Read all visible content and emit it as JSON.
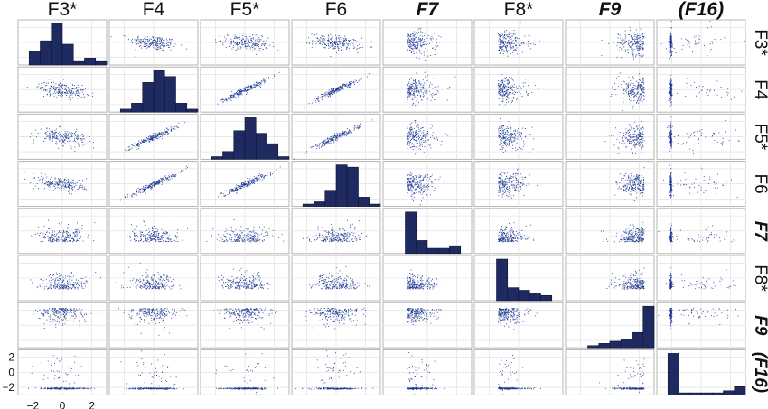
{
  "chart_data": {
    "type": "scatter",
    "title": "",
    "variables": [
      {
        "label": "F3*",
        "emphasis": false
      },
      {
        "label": "F4",
        "emphasis": false
      },
      {
        "label": "F5*",
        "emphasis": false
      },
      {
        "label": "F6",
        "emphasis": false
      },
      {
        "label": "F7",
        "emphasis": true
      },
      {
        "label": "F8*",
        "emphasis": false
      },
      {
        "label": "F9",
        "emphasis": true
      },
      {
        "label": "(F16)",
        "emphasis": true
      }
    ],
    "layout": "scatter-matrix",
    "diagonal": "histogram",
    "off_diagonal": "scatter",
    "xlim": [
      -3,
      3
    ],
    "ylim": [
      -3,
      3
    ],
    "x_ticks": [
      -2,
      0,
      2
    ],
    "y_ticks": [
      2,
      0,
      -2
    ],
    "x_tick_labels": [
      "−2",
      "0",
      "2"
    ],
    "y_tick_labels": [
      "2",
      "0",
      "−2"
    ],
    "grid": true,
    "point_color": "#1f3a93",
    "bar_color": "#1f2a60",
    "histograms": [
      {
        "label": "F3*",
        "bins": [
          -3,
          -2.25,
          -1.5,
          -0.75,
          0,
          0.75,
          1.5,
          2.25,
          3
        ],
        "counts": [
          0,
          4,
          7,
          12,
          6,
          1,
          2,
          1
        ]
      },
      {
        "label": "F4",
        "bins": [
          -3,
          -2.25,
          -1.5,
          -0.75,
          0,
          0.75,
          1.5,
          2.25,
          3
        ],
        "counts": [
          0,
          1,
          3,
          10,
          14,
          12,
          3,
          1
        ]
      },
      {
        "label": "F5*",
        "bins": [
          -3,
          -2.25,
          -1.5,
          -0.75,
          0,
          0.75,
          1.5,
          2.25,
          3
        ],
        "counts": [
          0,
          1,
          3,
          11,
          16,
          10,
          6,
          1
        ]
      },
      {
        "label": "F6",
        "bins": [
          -3,
          -2.25,
          -1.5,
          -0.75,
          0,
          0.75,
          1.5,
          2.25,
          3
        ],
        "counts": [
          0,
          1,
          2,
          7,
          18,
          17,
          4,
          1
        ]
      },
      {
        "label": "F7",
        "bins": [
          -3,
          -2.25,
          -1.5,
          -0.75,
          0,
          0.75,
          1.5,
          2.25,
          3
        ],
        "counts": [
          0,
          0,
          16,
          5,
          2,
          2,
          3,
          0
        ]
      },
      {
        "label": "F8*",
        "bins": [
          -3,
          -2.25,
          -1.5,
          -0.75,
          0,
          0.75,
          1.5,
          2.25,
          3
        ],
        "counts": [
          0,
          0,
          16,
          5,
          4,
          3,
          2,
          0
        ]
      },
      {
        "label": "F9",
        "bins": [
          -3,
          -2.25,
          -1.5,
          -0.75,
          0,
          0.75,
          1.5,
          2.25,
          3
        ],
        "counts": [
          0,
          0,
          1,
          2,
          3,
          4,
          7,
          19
        ]
      },
      {
        "label": "(F16)",
        "bins": [
          -3,
          -2.25,
          -1.5,
          -0.75,
          0,
          0.75,
          1.5,
          2.25,
          3
        ],
        "counts": [
          0,
          20,
          1,
          1,
          1,
          1,
          2,
          4
        ]
      }
    ]
  }
}
